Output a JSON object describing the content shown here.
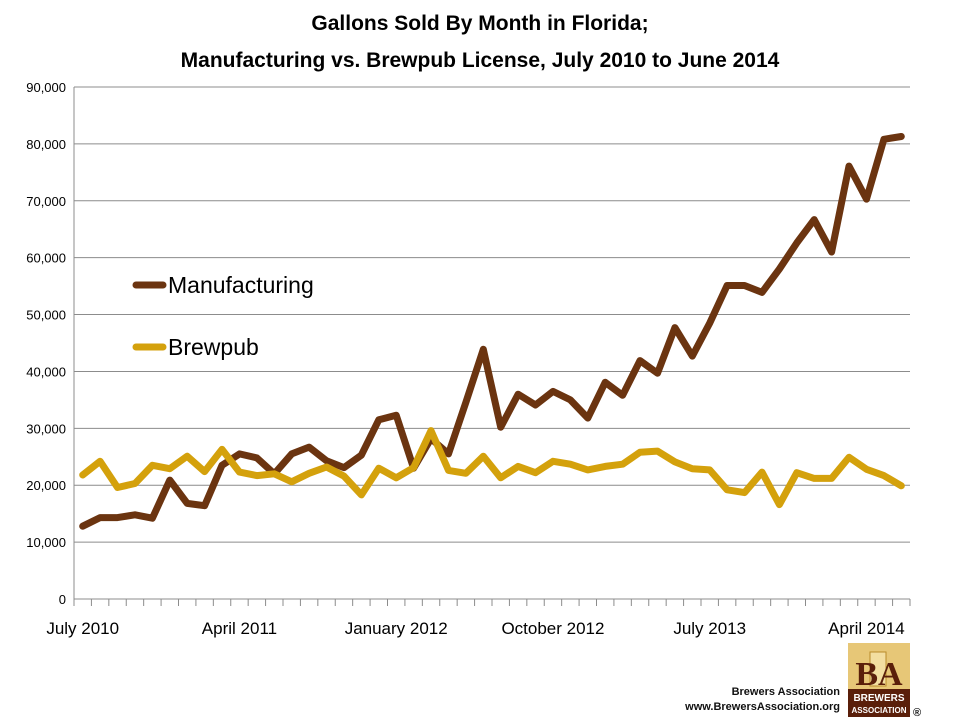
{
  "chart_data": {
    "type": "line",
    "title": [
      "Gallons Sold By Month in Florida;",
      "Manufacturing vs. Brewpub License, July 2010 to June 2014"
    ],
    "xlabel": "",
    "ylabel": "",
    "ylim": [
      0,
      90000
    ],
    "yticks": [
      0,
      10000,
      20000,
      30000,
      40000,
      50000,
      60000,
      70000,
      80000,
      90000
    ],
    "ytick_labels": [
      "0",
      "10,000",
      "20,000",
      "30,000",
      "40,000",
      "50,000",
      "60,000",
      "70,000",
      "80,000",
      "90,000"
    ],
    "xtick_labels": [
      {
        "index": 0,
        "label": "July 2010"
      },
      {
        "index": 9,
        "label": "April 2011"
      },
      {
        "index": 18,
        "label": "January 2012"
      },
      {
        "index": 27,
        "label": "October 2012"
      },
      {
        "index": 36,
        "label": "July 2013"
      },
      {
        "index": 45,
        "label": "April 2014"
      }
    ],
    "n_points": 48,
    "legend_position": "left-center",
    "grid": "horizontal",
    "series": [
      {
        "name": "Manufacturing",
        "color": "#6b3410",
        "values": [
          12800,
          14300,
          14300,
          14800,
          14200,
          20900,
          16800,
          16400,
          23500,
          25500,
          24800,
          22000,
          25500,
          26700,
          24300,
          23100,
          25300,
          31500,
          32300,
          23000,
          28200,
          25500,
          34600,
          43900,
          30200,
          36000,
          34100,
          36500,
          35000,
          31800,
          38100,
          35800,
          41900,
          39700,
          47700,
          42700,
          48500,
          55100,
          55100,
          53900,
          58000,
          62600,
          66700,
          61000,
          76100,
          70300,
          80800,
          81300
        ]
      },
      {
        "name": "Brewpub",
        "color": "#d4a10c",
        "values": [
          21800,
          24200,
          19600,
          20300,
          23500,
          22900,
          25100,
          22400,
          26300,
          22300,
          21700,
          22000,
          20600,
          22100,
          23200,
          21600,
          18300,
          23000,
          21300,
          23100,
          29600,
          22600,
          22100,
          25100,
          21300,
          23300,
          22200,
          24200,
          23700,
          22700,
          23300,
          23700,
          25800,
          26000,
          24100,
          22900,
          22700,
          19200,
          18700,
          22300,
          16600,
          22200,
          21200,
          21200,
          24900,
          22800,
          21700,
          19900
        ]
      }
    ]
  },
  "footer": {
    "org": "Brewers Association",
    "url": "www.BrewersAssociation.org",
    "logo_letters": "BA",
    "logo_line1": "BREWERS",
    "logo_line2": "ASSOCIATION",
    "registered": "®"
  }
}
